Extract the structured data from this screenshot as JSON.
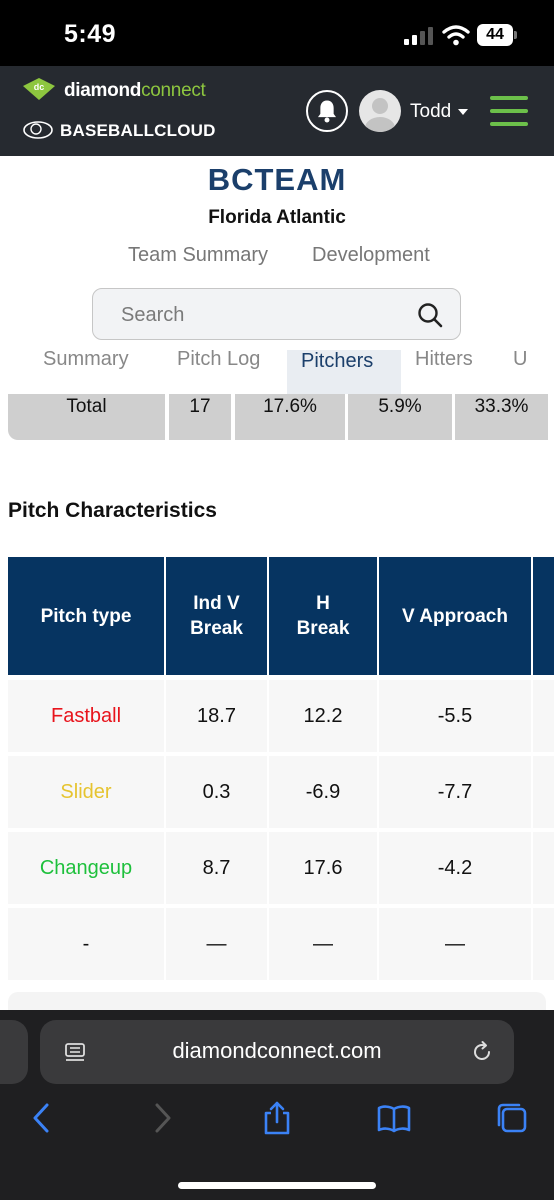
{
  "status_bar": {
    "time": "5:49",
    "battery": "44"
  },
  "header": {
    "brand_primary": "diamond",
    "brand_secondary": "connect",
    "brand_logo_text": "dc",
    "partner": "BASEBALLCLOUD",
    "user_name": "Todd",
    "accent_color": "#8dc63f",
    "background_color": "#262a30"
  },
  "team": {
    "name": "BCTEAM",
    "school": "Florida Atlantic",
    "tabs": [
      "Team Summary",
      "Development"
    ]
  },
  "search": {
    "placeholder": "Search"
  },
  "section_tabs": {
    "items": [
      "Summary",
      "Pitch Log",
      "Pitchers",
      "Hitters",
      "U"
    ],
    "active": "Pitchers"
  },
  "totals_row": {
    "label": "Total",
    "values": [
      "17",
      "17.6%",
      "5.9%",
      "33.3%"
    ]
  },
  "pitch_characteristics": {
    "title": "Pitch Characteristics",
    "headers": [
      "Pitch type",
      "Ind V Break",
      "H Break",
      "V Approach"
    ],
    "header_color": "#063461",
    "rows": [
      {
        "type": "Fastball",
        "color": "#e8141c",
        "ind_v_break": "18.7",
        "h_break": "12.2",
        "v_approach": "-5.5"
      },
      {
        "type": "Slider",
        "color": "#e6c430",
        "ind_v_break": "0.3",
        "h_break": "-6.9",
        "v_approach": "-7.7"
      },
      {
        "type": "Changeup",
        "color": "#1ec03c",
        "ind_v_break": "8.7",
        "h_break": "17.6",
        "v_approach": "-4.2"
      },
      {
        "type": "-",
        "color": "#111111",
        "ind_v_break": "—",
        "h_break": "—",
        "v_approach": "—"
      }
    ]
  },
  "browser": {
    "url": "diamondconnect.com",
    "icons": [
      "back-icon",
      "forward-icon",
      "share-icon",
      "bookmarks-icon",
      "tabs-icon"
    ]
  }
}
